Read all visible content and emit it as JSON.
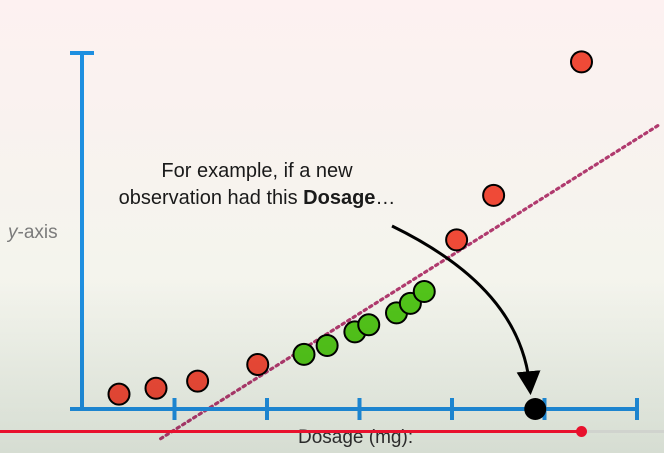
{
  "video": {
    "progress": 0.875
  },
  "labels": {
    "y_axis_italic": "y",
    "y_axis_rest": "-axis",
    "x_axis": "Dosage (mg):",
    "annotation_line1": "For example, if a new",
    "annotation_line2_prefix": "observation had this ",
    "annotation_line2_bold": "Dosage",
    "annotation_line2_suffix": "…"
  },
  "colors": {
    "axis": "#1e8fe0",
    "red_point": "#ef4a37",
    "green_point": "#52c41a",
    "new_point": "#000000",
    "fit_line": "#b03a6e",
    "background_top": "#fdf1f1",
    "background_bottom": "#eef6ea"
  },
  "chart_data": {
    "type": "scatter",
    "xlim": [
      0,
      6
    ],
    "ylim": [
      0,
      6
    ],
    "x_ticks": [
      1,
      2,
      3,
      4,
      5,
      6
    ],
    "series": [
      {
        "color_key": "red_point",
        "points": [
          [
            0.4,
            0.25
          ],
          [
            0.8,
            0.35
          ],
          [
            1.25,
            0.47
          ],
          [
            1.9,
            0.75
          ],
          [
            4.05,
            2.85
          ],
          [
            4.45,
            3.6
          ],
          [
            5.4,
            5.85
          ]
        ]
      },
      {
        "color_key": "green_point",
        "points": [
          [
            2.4,
            0.92
          ],
          [
            2.65,
            1.07
          ],
          [
            2.95,
            1.3
          ],
          [
            3.1,
            1.42
          ],
          [
            3.4,
            1.62
          ],
          [
            3.55,
            1.78
          ],
          [
            3.7,
            1.98
          ]
        ]
      },
      {
        "color_key": "new_point",
        "points": [
          [
            4.9,
            0.0
          ]
        ]
      }
    ],
    "fit_line": {
      "points": [
        [
          0.85,
          -0.5
        ],
        [
          6.25,
          4.8
        ]
      ]
    }
  }
}
